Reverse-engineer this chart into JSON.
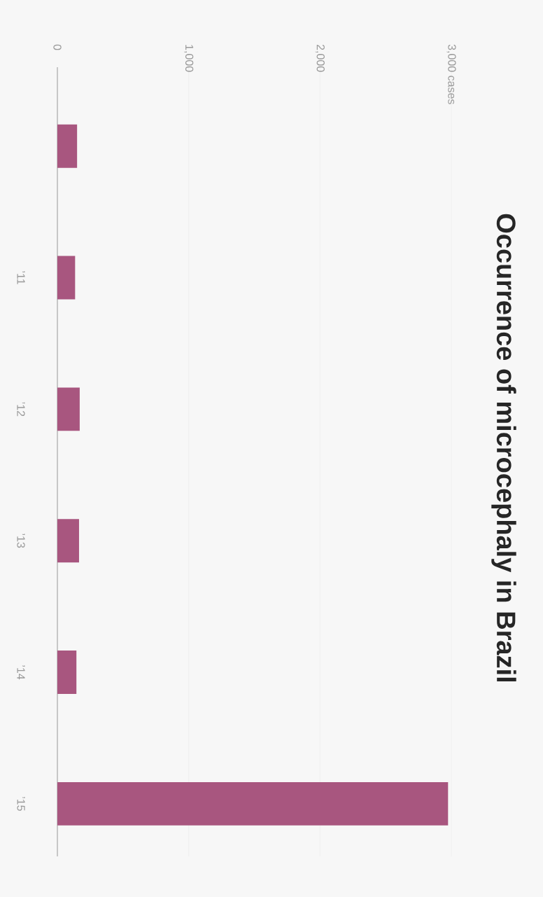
{
  "chart_data": {
    "type": "bar",
    "orientation": "horizontal",
    "title": "Occurrence of microcephaly in Brazil",
    "categories": [
      null,
      "’11",
      "’12",
      "’13",
      "’14",
      "’15"
    ],
    "values": [
      150,
      135,
      170,
      165,
      145,
      2975
    ],
    "color": "#a8567f",
    "xlim": [
      0,
      3000
    ],
    "xticks": [
      0,
      {
        "value": 1000,
        "label": "1,000"
      },
      {
        "value": 2000,
        "label": "2,000"
      },
      {
        "value": 3000,
        "label": "3,000 cases"
      }
    ],
    "grid": "x"
  }
}
